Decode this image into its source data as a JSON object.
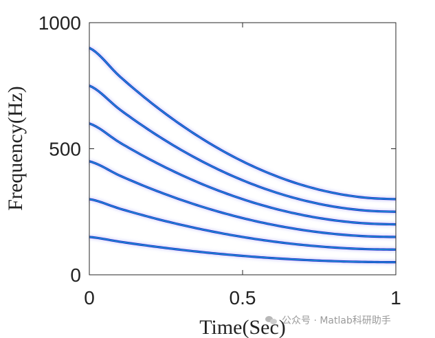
{
  "chart_data": {
    "type": "line",
    "title": "",
    "xlabel": "Time(Sec)",
    "ylabel": "Frequency(Hz)",
    "xlim": [
      0,
      1
    ],
    "ylim": [
      0,
      1000
    ],
    "x_ticks": [
      {
        "value": 0,
        "label": "0"
      },
      {
        "value": 0.5,
        "label": "0.5"
      },
      {
        "value": 1,
        "label": "1"
      }
    ],
    "y_ticks": [
      {
        "value": 0,
        "label": "0"
      },
      {
        "value": 500,
        "label": "500"
      },
      {
        "value": 1000,
        "label": "1000"
      }
    ],
    "grid": false,
    "legend": "none",
    "x": [
      0,
      0.1,
      0.2,
      0.3,
      0.4,
      0.5,
      0.6,
      0.7,
      0.8,
      0.9,
      1.0
    ],
    "series": [
      {
        "values": [
          150,
          131,
          114,
          99,
          86,
          75,
          66,
          59,
          54,
          51,
          50
        ]
      },
      {
        "values": [
          300,
          262,
          228,
          198,
          172,
          150,
          132,
          118,
          108,
          102,
          100
        ]
      },
      {
        "values": [
          450,
          393,
          342,
          297,
          258,
          225,
          198,
          177,
          162,
          153,
          150
        ]
      },
      {
        "values": [
          600,
          524,
          456,
          396,
          344,
          300,
          264,
          236,
          216,
          204,
          200
        ]
      },
      {
        "values": [
          750,
          655,
          570,
          495,
          430,
          375,
          330,
          295,
          270,
          255,
          250
        ]
      },
      {
        "values": [
          900,
          786,
          684,
          594,
          516,
          450,
          396,
          354,
          324,
          306,
          300
        ]
      }
    ],
    "colors": {
      "line_core": "#1f6fd6",
      "line_edge": "#0a18c8",
      "line_highlight": "#2bd1c0",
      "halo": "#8a8cf0",
      "axis": "#262626"
    }
  },
  "watermark": {
    "text": "公众号 · Matlab科研助手",
    "icon": "wechat-icon"
  }
}
